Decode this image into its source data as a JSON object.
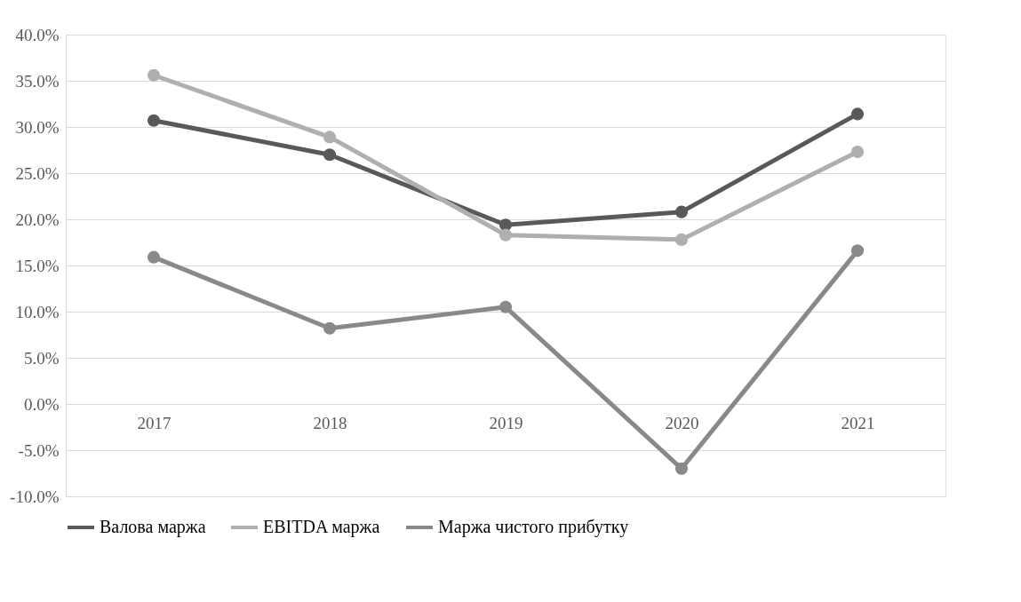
{
  "chart_data": {
    "type": "line",
    "categories": [
      "2017",
      "2018",
      "2019",
      "2020",
      "2021"
    ],
    "series": [
      {
        "name": "Валова маржа",
        "color": "#595959",
        "values": [
          30.7,
          27.0,
          19.4,
          20.8,
          31.4
        ]
      },
      {
        "name": "EBITDA маржа",
        "color": "#afafaf",
        "values": [
          35.6,
          28.9,
          18.3,
          17.8,
          27.3
        ]
      },
      {
        "name": "Маржа чистого прибутку",
        "color": "#898989",
        "values": [
          15.9,
          8.2,
          10.5,
          -7.0,
          16.6
        ]
      }
    ],
    "ylim": [
      -10,
      40
    ],
    "yticks": [
      {
        "value": -10,
        "label": "-10.0%"
      },
      {
        "value": -5,
        "label": "-5.0%"
      },
      {
        "value": 0,
        "label": "0.0%"
      },
      {
        "value": 5,
        "label": "5.0%"
      },
      {
        "value": 10,
        "label": "10.0%"
      },
      {
        "value": 15,
        "label": "15.0%"
      },
      {
        "value": 20,
        "label": "20.0%"
      },
      {
        "value": 25,
        "label": "25.0%"
      },
      {
        "value": 30,
        "label": "30.0%"
      },
      {
        "value": 35,
        "label": "35.0%"
      },
      {
        "value": 40,
        "label": "40.0%"
      }
    ],
    "grid": "y",
    "legend": "bottom",
    "marker": "circle",
    "line_style": "solid"
  }
}
